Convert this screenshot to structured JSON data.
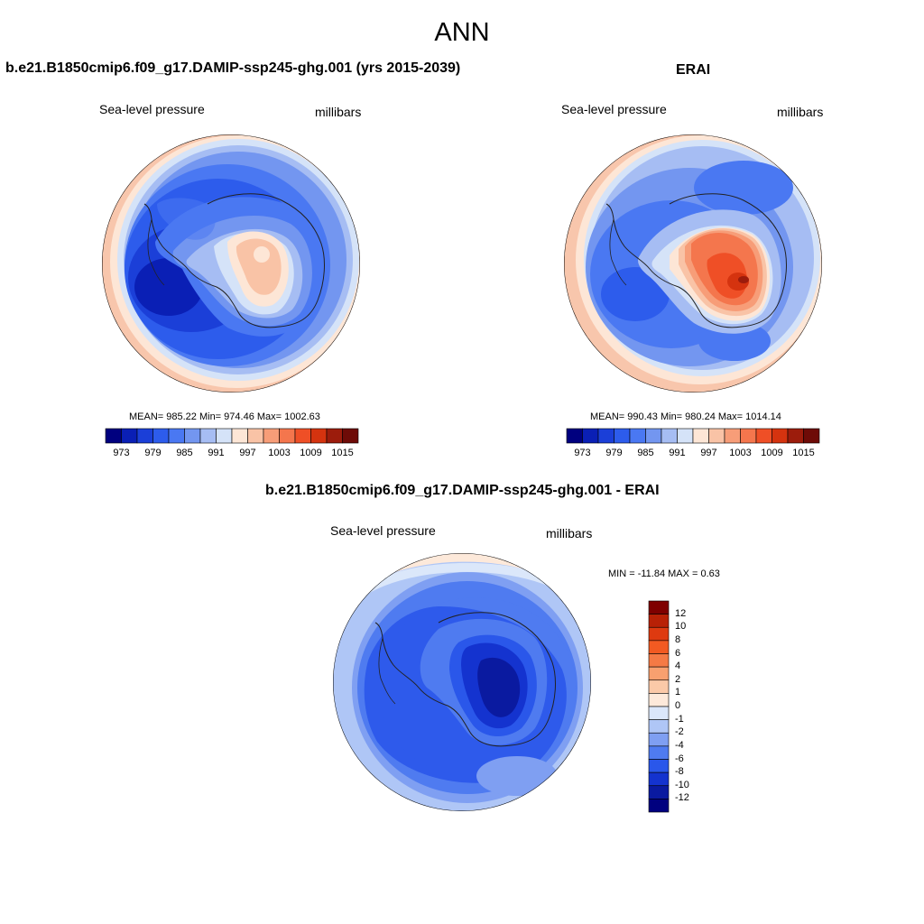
{
  "title": "ANN",
  "panels": [
    {
      "title": "b.e21.B1850cmip6.f09_g17.DAMIP-ssp245-ghg.001 (yrs 2015-2039)",
      "variable": "Sea-level pressure",
      "units": "millibars",
      "stats": "MEAN= 985.22  Min= 974.46  Max= 1002.63",
      "colorbar_labels": [
        "973",
        "979",
        "985",
        "991",
        "997",
        "1003",
        "1009",
        "1015"
      ]
    },
    {
      "title": "ERAI",
      "variable": "Sea-level pressure",
      "units": "millibars",
      "stats": "MEAN= 990.43  Min= 980.24  Max= 1014.14",
      "colorbar_labels": [
        "973",
        "979",
        "985",
        "991",
        "997",
        "1003",
        "1009",
        "1015"
      ]
    },
    {
      "title": "b.e21.B1850cmip6.f09_g17.DAMIP-ssp245-ghg.001 - ERAI",
      "variable": "Sea-level pressure",
      "units": "millibars",
      "stats": "MIN = -11.84 MAX =   0.63",
      "colorbar_labels": [
        "12",
        "10",
        "8",
        "6",
        "4",
        "2",
        "1",
        "0",
        "-1",
        "-2",
        "-4",
        "-6",
        "-8",
        "-10",
        "-12"
      ]
    }
  ],
  "palette": [
    "#00007f",
    "#0a1fb5",
    "#1b3fd8",
    "#2d5cec",
    "#4a78f2",
    "#7396f0",
    "#a6bdf3",
    "#d5e3f8",
    "#fde6d6",
    "#f9c3a6",
    "#f79d78",
    "#f4764d",
    "#ef4f26",
    "#d5330f",
    "#9c1c0c",
    "#6e0b07"
  ],
  "diff_palette": [
    "#7f0000",
    "#b82106",
    "#de3a10",
    "#f25a22",
    "#f57a45",
    "#f8a06f",
    "#fbc9a8",
    "#fde9da",
    "#dbe7fa",
    "#afc6f6",
    "#7f9ff2",
    "#4f7bf0",
    "#2a57ea",
    "#1433cf",
    "#0a1aa0",
    "#00007f"
  ]
}
